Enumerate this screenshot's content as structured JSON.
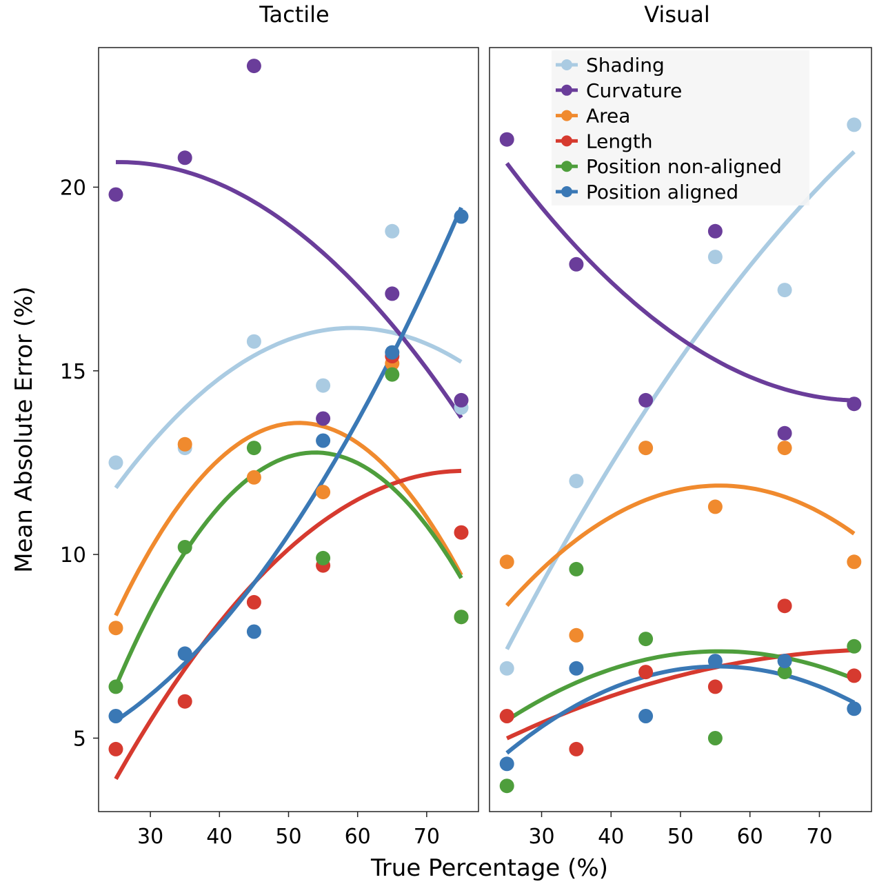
{
  "colors": {
    "Shading": "#aacbe2",
    "Curvature": "#6a3d9a",
    "Area": "#f08a2e",
    "Length": "#d63a2f",
    "Position non-aligned": "#4e9e3c",
    "Position aligned": "#3a78b5"
  },
  "xlabel": "True Percentage (%)",
  "ylabel": "Mean Absolute Error (%)",
  "legend": {
    "placement": "top-center of right panel",
    "items": [
      "Shading",
      "Curvature",
      "Area",
      "Length",
      "Position non-aligned",
      "Position aligned"
    ]
  },
  "chart_data": [
    {
      "type": "scatter",
      "title": "Tactile",
      "xlabel": "True Percentage (%)",
      "ylabel": "Mean Absolute Error (%)",
      "xlim": [
        22.5,
        77.5
      ],
      "ylim": [
        3.0,
        23.8
      ],
      "xticks": [
        30,
        40,
        50,
        60,
        70
      ],
      "yticks": [
        5,
        10,
        15,
        20
      ],
      "grid": false,
      "series": [
        {
          "name": "Shading",
          "x": [
            25,
            35,
            45,
            55,
            65,
            75
          ],
          "y": [
            12.5,
            12.9,
            15.8,
            14.6,
            18.8,
            14.0
          ]
        },
        {
          "name": "Curvature",
          "x": [
            25,
            35,
            45,
            55,
            65,
            75
          ],
          "y": [
            19.8,
            20.8,
            23.3,
            13.7,
            17.1,
            14.2
          ]
        },
        {
          "name": "Area",
          "x": [
            25,
            35,
            45,
            55,
            65,
            75
          ],
          "y": [
            8.0,
            13.0,
            12.1,
            11.7,
            15.2,
            8.3
          ]
        },
        {
          "name": "Length",
          "x": [
            25,
            35,
            45,
            55,
            65,
            75
          ],
          "y": [
            4.7,
            6.0,
            8.7,
            9.7,
            15.4,
            10.6
          ]
        },
        {
          "name": "Position non-aligned",
          "x": [
            25,
            35,
            45,
            55,
            65,
            75
          ],
          "y": [
            6.4,
            10.2,
            12.9,
            9.9,
            14.9,
            8.3
          ]
        },
        {
          "name": "Position aligned",
          "x": [
            25,
            35,
            45,
            55,
            65,
            75
          ],
          "y": [
            5.6,
            7.3,
            7.9,
            13.1,
            15.5,
            19.2
          ]
        }
      ]
    },
    {
      "type": "scatter",
      "title": "Visual",
      "xlabel": "True Percentage (%)",
      "ylabel": "Mean Absolute Error (%)",
      "xlim": [
        22.5,
        77.5
      ],
      "ylim": [
        3.0,
        23.8
      ],
      "xticks": [
        30,
        40,
        50,
        60,
        70
      ],
      "yticks": [
        5,
        10,
        15,
        20
      ],
      "grid": false,
      "series": [
        {
          "name": "Shading",
          "x": [
            25,
            35,
            45,
            55,
            65,
            75
          ],
          "y": [
            6.9,
            12.0,
            12.9,
            18.1,
            17.2,
            21.7
          ]
        },
        {
          "name": "Curvature",
          "x": [
            25,
            35,
            45,
            55,
            65,
            75
          ],
          "y": [
            21.3,
            17.9,
            14.2,
            18.8,
            13.3,
            14.1
          ]
        },
        {
          "name": "Area",
          "x": [
            25,
            35,
            45,
            55,
            65,
            75
          ],
          "y": [
            9.8,
            7.8,
            12.9,
            11.3,
            12.9,
            9.8
          ]
        },
        {
          "name": "Length",
          "x": [
            25,
            35,
            45,
            55,
            65,
            75
          ],
          "y": [
            5.6,
            4.7,
            6.8,
            6.4,
            8.6,
            6.7
          ]
        },
        {
          "name": "Position non-aligned",
          "x": [
            25,
            35,
            45,
            55,
            65,
            75
          ],
          "y": [
            3.7,
            9.6,
            7.7,
            5.0,
            6.8,
            7.5
          ]
        },
        {
          "name": "Position aligned",
          "x": [
            25,
            35,
            45,
            55,
            65,
            75
          ],
          "y": [
            4.3,
            6.9,
            5.6,
            7.1,
            7.1,
            5.8
          ]
        }
      ]
    }
  ]
}
